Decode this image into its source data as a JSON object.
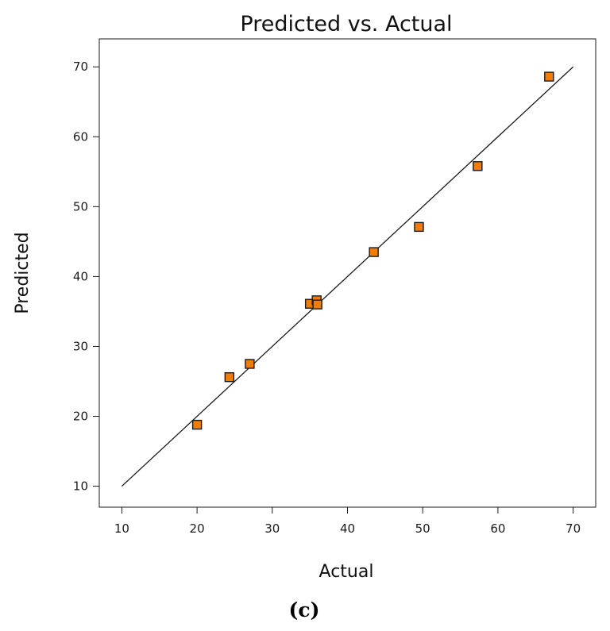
{
  "chart_data": {
    "type": "scatter",
    "title": "Predicted vs. Actual",
    "xlabel": "Actual",
    "ylabel": "Predicted",
    "xlim": [
      7,
      73
    ],
    "ylim": [
      7,
      74
    ],
    "x_ticks": [
      10,
      20,
      30,
      40,
      50,
      60,
      70
    ],
    "y_ticks": [
      10,
      20,
      30,
      40,
      50,
      60,
      70
    ],
    "series": [
      {
        "marker": "square",
        "color": "#f07d0a",
        "edge_color": "#1a1a1a",
        "points": [
          {
            "x": 20.0,
            "y": 18.8
          },
          {
            "x": 24.3,
            "y": 25.6
          },
          {
            "x": 27.0,
            "y": 27.5
          },
          {
            "x": 35.0,
            "y": 36.1
          },
          {
            "x": 35.9,
            "y": 36.6
          },
          {
            "x": 36.0,
            "y": 36.0
          },
          {
            "x": 43.5,
            "y": 43.5
          },
          {
            "x": 49.5,
            "y": 47.1
          },
          {
            "x": 57.3,
            "y": 55.8
          },
          {
            "x": 66.8,
            "y": 68.6
          }
        ]
      }
    ],
    "reference_line": {
      "from": [
        10,
        10
      ],
      "to": [
        70,
        70
      ],
      "color": "#1a1a1a"
    },
    "grid": false,
    "legend": "none"
  },
  "caption": "(c)"
}
